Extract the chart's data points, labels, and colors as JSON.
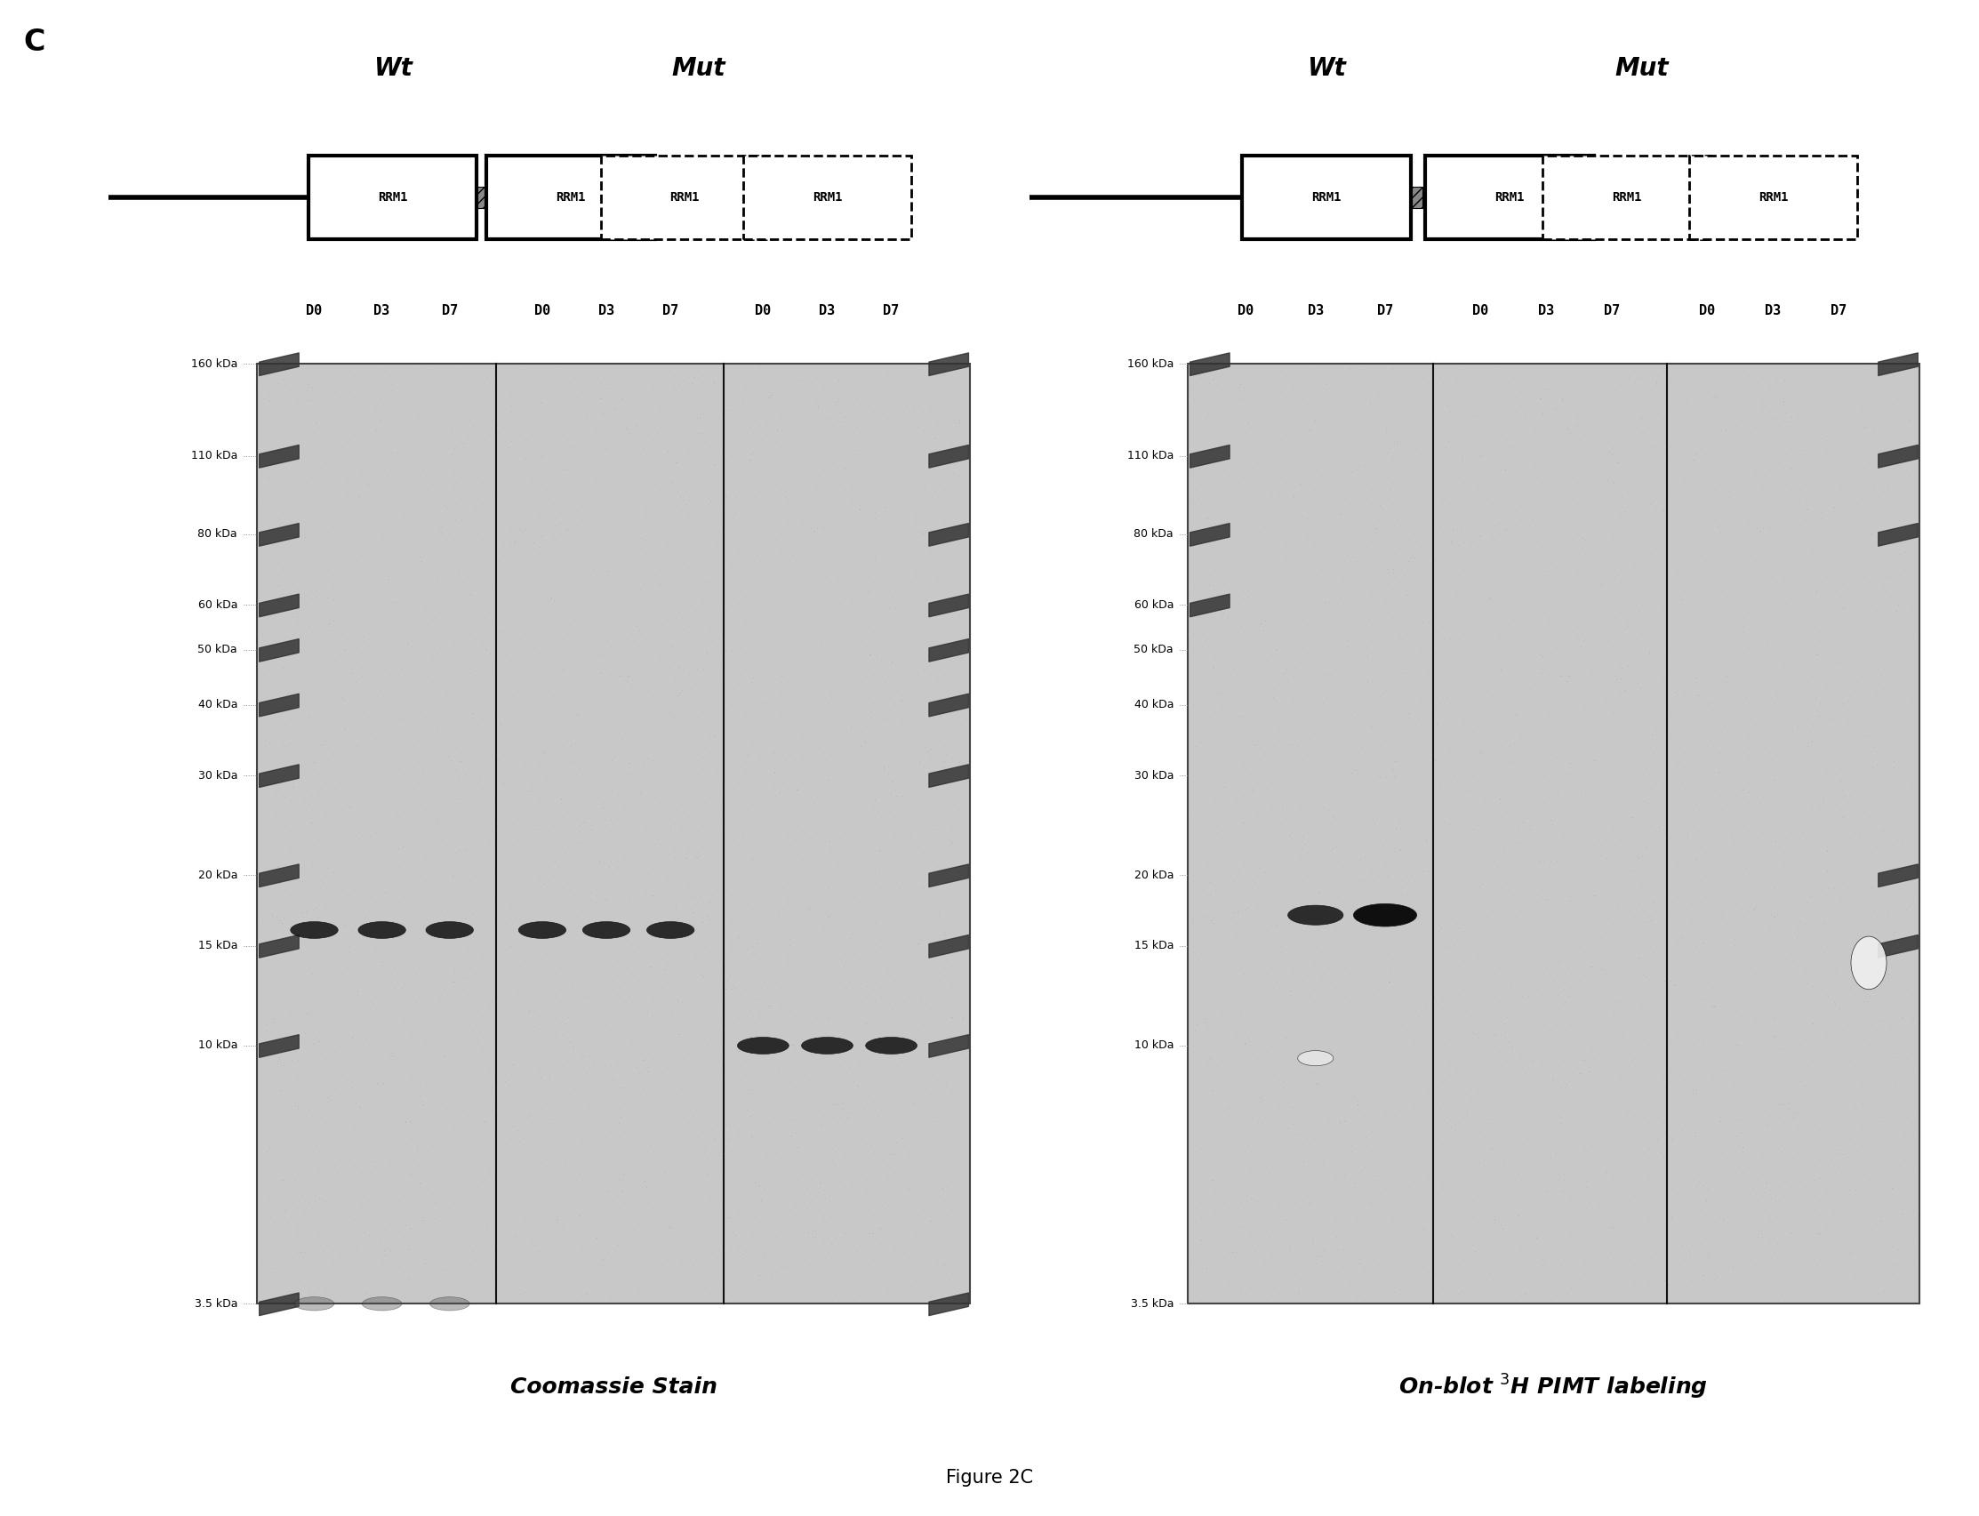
{
  "background_color": "#ffffff",
  "figure_label": "C",
  "mw_labels": [
    "160 kDa",
    "110 kDa",
    "80 kDa",
    "60 kDa",
    "50 kDa",
    "40 kDa",
    "30 kDa",
    "20 kDa",
    "15 kDa",
    "10 kDa",
    "3.5 kDa"
  ],
  "mw_vals": [
    160,
    110,
    80,
    60,
    50,
    40,
    30,
    20,
    15,
    10,
    3.5
  ],
  "day_labels": [
    "D0",
    "D3",
    "D7",
    "D0",
    "D3",
    "D7",
    "D0",
    "D3",
    "D7"
  ],
  "panel1_caption": "Coomassie Stain",
  "panel2_caption": "On-blot $^3$H PIMT labeling",
  "figure_caption": "Figure 2C",
  "gel_bg": "#c8c8c8",
  "wt_label": "Wt",
  "mut_label": "Mut",
  "rrm1_label": "RRM1",
  "title_fontsize": 20,
  "day_fontsize": 11,
  "mw_fontsize": 9,
  "caption_fontsize": 18,
  "fig_label_fontsize": 24
}
